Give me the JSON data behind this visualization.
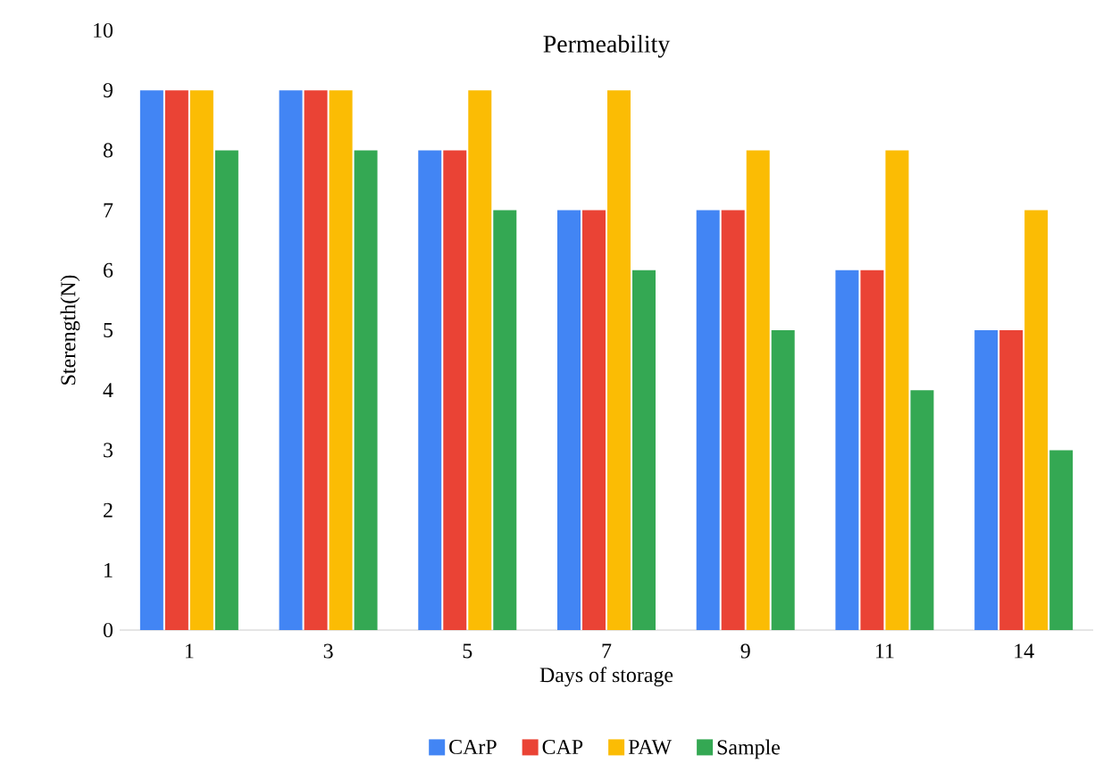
{
  "chart_data": {
    "type": "bar",
    "title": "Permeability",
    "xlabel": "Days of storage",
    "ylabel": "Sterength(N)",
    "categories": [
      "1",
      "3",
      "5",
      "7",
      "9",
      "11",
      "14"
    ],
    "series": [
      {
        "name": "CArP",
        "color": "#4285f4",
        "values": [
          9,
          9,
          8,
          7,
          7,
          6,
          5
        ]
      },
      {
        "name": "CAP",
        "color": "#ea4335",
        "values": [
          9,
          9,
          8,
          7,
          7,
          6,
          5
        ]
      },
      {
        "name": "PAW",
        "color": "#fbbc04",
        "values": [
          9,
          9,
          9,
          9,
          8,
          8,
          7
        ]
      },
      {
        "name": "Sample",
        "color": "#34a853",
        "values": [
          8,
          8,
          7,
          6,
          5,
          4,
          3
        ]
      }
    ],
    "ylim": [
      0,
      10
    ],
    "yticks": [
      0,
      1,
      2,
      3,
      4,
      5,
      6,
      7,
      8,
      9,
      10
    ],
    "grid": false,
    "legend": "bottom"
  }
}
